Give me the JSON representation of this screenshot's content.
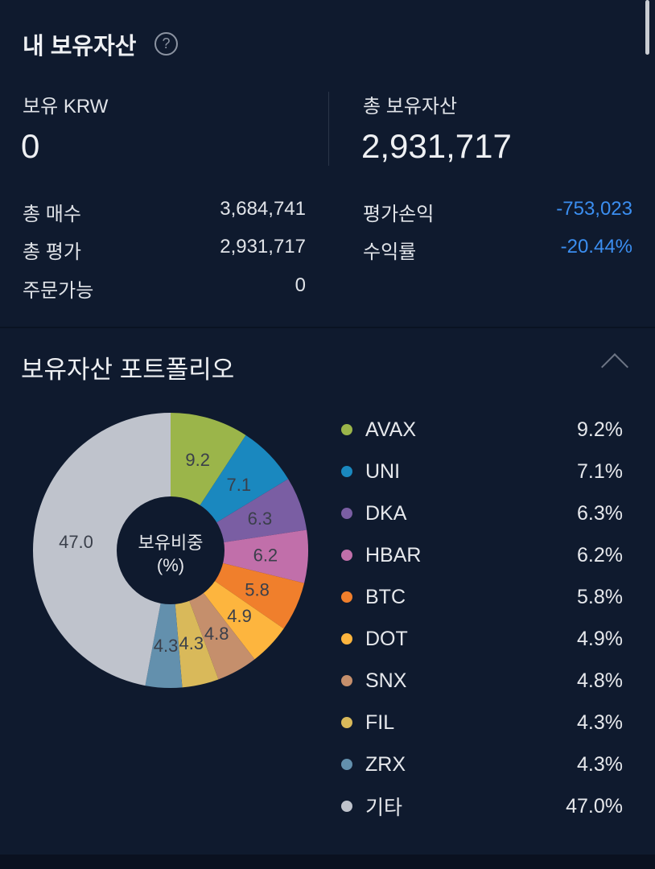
{
  "header": {
    "title": "내 보유자산",
    "help_icon": "question-circle-icon"
  },
  "summary": {
    "krw_label": "보유 KRW",
    "krw_value": "0",
    "total_label": "총 보유자산",
    "total_value": "2,931,717",
    "rows_left": [
      {
        "label": "총 매수",
        "value": "3,684,741"
      },
      {
        "label": "총 평가",
        "value": "2,931,717"
      },
      {
        "label": "주문가능",
        "value": "0"
      }
    ],
    "rows_right": [
      {
        "label": "평가손익",
        "value": "-753,023"
      },
      {
        "label": "수익률",
        "value": "-20.44%"
      }
    ],
    "negative_color": "#3b8ef0"
  },
  "portfolio": {
    "title": "보유자산 포트폴리오",
    "collapse_icon": "chevron-up-icon",
    "center_label_1": "보유비중",
    "center_label_2": "(%)"
  },
  "chart_data": {
    "type": "pie",
    "donut": true,
    "center_title": "보유비중 (%)",
    "categories": [
      "AVAX",
      "UNI",
      "DKA",
      "HBAR",
      "BTC",
      "DOT",
      "SNX",
      "FIL",
      "ZRX",
      "기타"
    ],
    "values": [
      9.2,
      7.1,
      6.3,
      6.2,
      5.8,
      4.9,
      4.8,
      4.3,
      4.3,
      47.0
    ],
    "labels": [
      "9.2",
      "7.1",
      "6.3",
      "6.2",
      "5.8",
      "4.9",
      "4.8",
      "4.3",
      "4.3",
      "47.0"
    ],
    "legend_values": [
      "9.2%",
      "7.1%",
      "6.3%",
      "6.2%",
      "5.8%",
      "4.9%",
      "4.8%",
      "4.3%",
      "4.3%",
      "47.0%"
    ],
    "colors": [
      "#9bb54a",
      "#1a88bf",
      "#7a5ea3",
      "#c16faa",
      "#f07f2c",
      "#fdb53e",
      "#c58f6c",
      "#d9b95a",
      "#6390ad",
      "#bfc3cc"
    ],
    "legend": "right"
  }
}
